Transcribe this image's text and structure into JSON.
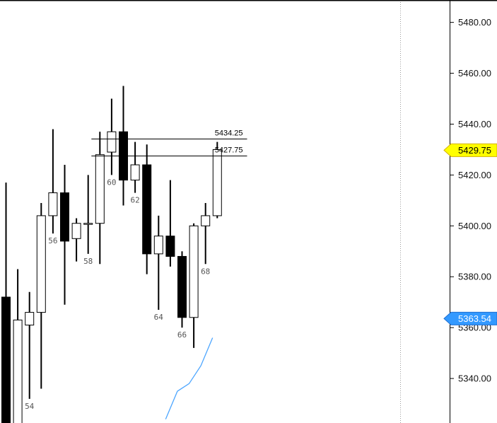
{
  "chart_data": {
    "type": "candlestick",
    "ylim": [
      5322.5,
      5488.8
    ],
    "y_ticks": [
      5340,
      5360,
      5380,
      5400,
      5420,
      5440,
      5460,
      5480
    ],
    "y_tick_labels": [
      "5340.00",
      "5360.00",
      "5380.00",
      "5400.00",
      "5420.00",
      "5440.00",
      "5460.00",
      "5480.00"
    ],
    "grid": false,
    "candles": [
      {
        "bar": 52,
        "open": 5372,
        "high": 5417,
        "low": 5322,
        "close": 5322,
        "label": ""
      },
      {
        "bar": 53,
        "open": 5322,
        "high": 5383,
        "low": 5322,
        "close": 5363,
        "label": ""
      },
      {
        "bar": 54,
        "open": 5361,
        "high": 5374,
        "low": 5332,
        "close": 5366,
        "label": "54"
      },
      {
        "bar": 55,
        "open": 5366,
        "high": 5409,
        "low": 5336,
        "close": 5404,
        "label": ""
      },
      {
        "bar": 56,
        "open": 5404,
        "high": 5438,
        "low": 5397,
        "close": 5413,
        "label": "56"
      },
      {
        "bar": 57,
        "open": 5413,
        "high": 5424,
        "low": 5369,
        "close": 5394,
        "label": ""
      },
      {
        "bar": 58,
        "open": 5395,
        "high": 5403,
        "low": 5386,
        "close": 5401,
        "label": ""
      },
      {
        "bar": 59,
        "open": 5401,
        "high": 5420,
        "low": 5389,
        "close": 5401,
        "label": "58"
      },
      {
        "bar": 60,
        "open": 5401,
        "high": 5437,
        "low": 5385,
        "close": 5428,
        "label": ""
      },
      {
        "bar": 61,
        "open": 5429,
        "high": 5450,
        "low": 5420,
        "close": 5437,
        "label": "60"
      },
      {
        "bar": 62,
        "open": 5437,
        "high": 5455,
        "low": 5408,
        "close": 5418,
        "label": ""
      },
      {
        "bar": 63,
        "open": 5418,
        "high": 5433,
        "low": 5413,
        "close": 5424,
        "label": "62"
      },
      {
        "bar": 64,
        "open": 5424,
        "high": 5432,
        "low": 5381,
        "close": 5389,
        "label": ""
      },
      {
        "bar": 65,
        "open": 5389,
        "high": 5404,
        "low": 5367,
        "close": 5396,
        "label": "64"
      },
      {
        "bar": 66,
        "open": 5396,
        "high": 5418,
        "low": 5384,
        "close": 5388,
        "label": ""
      },
      {
        "bar": 67,
        "open": 5388,
        "high": 5390,
        "low": 5360,
        "close": 5364,
        "label": "66"
      },
      {
        "bar": 68,
        "open": 5364,
        "high": 5401,
        "low": 5352,
        "close": 5400,
        "label": ""
      },
      {
        "bar": 69,
        "open": 5400,
        "high": 5409,
        "low": 5385,
        "close": 5404,
        "label": "68"
      },
      {
        "bar": 70,
        "open": 5404,
        "high": 5433,
        "low": 5403,
        "close": 5430,
        "label": ""
      }
    ],
    "moving_average": {
      "color": "#4da6ff",
      "points": [
        {
          "bar": 65.6,
          "value": 5324
        },
        {
          "bar": 66.6,
          "value": 5335
        },
        {
          "bar": 67.6,
          "value": 5338
        },
        {
          "bar": 68.6,
          "value": 5345
        },
        {
          "bar": 69.6,
          "value": 5356
        }
      ]
    },
    "levels": [
      {
        "value": 5434.25,
        "label": "5434.25",
        "from_bar": 60,
        "to_bar": 72
      },
      {
        "value": 5427.75,
        "label": "5427.75",
        "from_bar": 60,
        "to_bar": 72
      }
    ],
    "price_badges": [
      {
        "value": 5429.75,
        "label": "5429.75",
        "bg": "#ffff00",
        "border": "#d4b000",
        "text_color": "#000000"
      },
      {
        "value": 5363.54,
        "label": "5363.54",
        "bg": "#3399ff",
        "border": "#1f6fd1",
        "text_color": "#ffffff"
      }
    ],
    "vertical_marker_bar": 85.6,
    "colors": {
      "up_body": "#ffffff",
      "down_body": "#000000",
      "wick": "#000000",
      "axis": "#000000",
      "marker": "#9a9a9a"
    }
  }
}
